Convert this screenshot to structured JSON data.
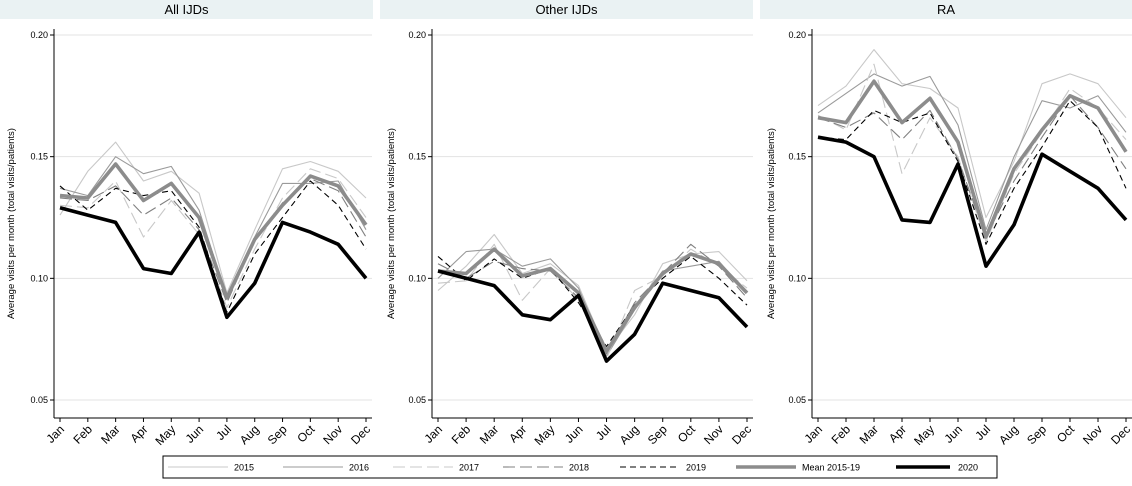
{
  "colors": {
    "background": "#ffffff",
    "panel_title_bg": "#eaf2f3",
    "gridline": "#e3e3e3",
    "axis": "#000000",
    "s2015": "#c8c8c8",
    "s2016": "#9a9a9a",
    "s2017": "#c8c8c8",
    "s2018": "#808080",
    "s2019": "#000000",
    "mean": "#8c8c8c",
    "s2020": "#000000"
  },
  "chart_data": [
    {
      "type": "line",
      "title": "All IJDs",
      "ylabel": "Average visits per month (total visits/patients)",
      "ylim": [
        0.05,
        0.2
      ],
      "yticks": [
        0.05,
        0.1,
        0.15,
        0.2
      ],
      "ytick_labels": [
        "0.05",
        "0.10",
        "0.15",
        "0.20"
      ],
      "categories": [
        "Jan",
        "Feb",
        "Mar",
        "Apr",
        "May",
        "Jun",
        "Jul",
        "Aug",
        "Sep",
        "Oct",
        "Nov",
        "Dec"
      ],
      "grid": true,
      "series": [
        {
          "name": "2015",
          "values": [
            0.126,
            0.144,
            0.156,
            0.14,
            0.144,
            0.135,
            0.094,
            0.12,
            0.145,
            0.148,
            0.144,
            0.133
          ]
        },
        {
          "name": "2016",
          "values": [
            0.137,
            0.134,
            0.15,
            0.143,
            0.146,
            0.128,
            0.092,
            0.117,
            0.139,
            0.139,
            0.14,
            0.12
          ]
        },
        {
          "name": "2017",
          "values": [
            0.13,
            0.129,
            0.14,
            0.117,
            0.132,
            0.118,
            0.088,
            0.112,
            0.133,
            0.145,
            0.141,
            0.125
          ]
        },
        {
          "name": "2018",
          "values": [
            0.133,
            0.132,
            0.138,
            0.126,
            0.133,
            0.12,
            0.09,
            0.116,
            0.131,
            0.141,
            0.136,
            0.117
          ]
        },
        {
          "name": "2019",
          "values": [
            0.138,
            0.128,
            0.137,
            0.134,
            0.136,
            0.121,
            0.086,
            0.11,
            0.125,
            0.14,
            0.13,
            0.112
          ]
        },
        {
          "name": "Mean 2015-19",
          "values": [
            0.134,
            0.133,
            0.147,
            0.132,
            0.139,
            0.125,
            0.092,
            0.116,
            0.13,
            0.142,
            0.138,
            0.122
          ]
        },
        {
          "name": "2020",
          "values": [
            0.129,
            0.126,
            0.123,
            0.104,
            0.102,
            0.119,
            0.084,
            0.098,
            0.123,
            0.119,
            0.114,
            0.1
          ]
        }
      ]
    },
    {
      "type": "line",
      "title": "Other IJDs",
      "ylabel": "Average visits per month (total visits/patients)",
      "ylim": [
        0.05,
        0.2
      ],
      "yticks": [
        0.05,
        0.1,
        0.15,
        0.2
      ],
      "ytick_labels": [
        "0.05",
        "0.10",
        "0.15",
        "0.20"
      ],
      "categories": [
        "Jan",
        "Feb",
        "Mar",
        "Apr",
        "May",
        "Jun",
        "Jul",
        "Aug",
        "Sep",
        "Oct",
        "Nov",
        "Dec"
      ],
      "grid": true,
      "series": [
        {
          "name": "2015",
          "values": [
            0.095,
            0.105,
            0.118,
            0.102,
            0.106,
            0.097,
            0.07,
            0.085,
            0.106,
            0.11,
            0.111,
            0.099
          ]
        },
        {
          "name": "2016",
          "values": [
            0.1,
            0.111,
            0.112,
            0.105,
            0.108,
            0.096,
            0.068,
            0.087,
            0.103,
            0.105,
            0.107,
            0.094
          ]
        },
        {
          "name": "2017",
          "values": [
            0.098,
            0.099,
            0.114,
            0.091,
            0.104,
            0.091,
            0.067,
            0.095,
            0.101,
            0.112,
            0.105,
            0.096
          ]
        },
        {
          "name": "2018",
          "values": [
            0.106,
            0.1,
            0.107,
            0.104,
            0.103,
            0.092,
            0.069,
            0.09,
            0.102,
            0.114,
            0.105,
            0.092
          ]
        },
        {
          "name": "2019",
          "values": [
            0.109,
            0.099,
            0.108,
            0.1,
            0.104,
            0.09,
            0.072,
            0.089,
            0.1,
            0.109,
            0.1,
            0.089
          ]
        },
        {
          "name": "Mean 2015-19",
          "values": [
            0.103,
            0.102,
            0.112,
            0.101,
            0.104,
            0.094,
            0.07,
            0.088,
            0.102,
            0.11,
            0.106,
            0.094
          ]
        },
        {
          "name": "2020",
          "values": [
            0.103,
            0.1,
            0.097,
            0.085,
            0.083,
            0.093,
            0.066,
            0.077,
            0.098,
            0.095,
            0.092,
            0.08
          ]
        }
      ]
    },
    {
      "type": "line",
      "title": "RA",
      "ylabel": "Average visits per month (total visits/patients)",
      "ylim": [
        0.05,
        0.2
      ],
      "yticks": [
        0.05,
        0.1,
        0.15,
        0.2
      ],
      "ytick_labels": [
        "0.05",
        "0.10",
        "0.15",
        "0.20"
      ],
      "categories": [
        "Jan",
        "Feb",
        "Mar",
        "Apr",
        "May",
        "Jun",
        "Jul",
        "Aug",
        "Sep",
        "Oct",
        "Nov",
        "Dec"
      ],
      "grid": true,
      "series": [
        {
          "name": "2015",
          "values": [
            0.171,
            0.179,
            0.194,
            0.18,
            0.178,
            0.17,
            0.125,
            0.148,
            0.18,
            0.184,
            0.18,
            0.166
          ]
        },
        {
          "name": "2016",
          "values": [
            0.168,
            0.176,
            0.184,
            0.179,
            0.183,
            0.163,
            0.12,
            0.15,
            0.173,
            0.17,
            0.175,
            0.16
          ]
        },
        {
          "name": "2017",
          "values": [
            0.167,
            0.161,
            0.188,
            0.143,
            0.166,
            0.15,
            0.115,
            0.143,
            0.16,
            0.178,
            0.17,
            0.157
          ]
        },
        {
          "name": "2018",
          "values": [
            0.166,
            0.162,
            0.168,
            0.157,
            0.169,
            0.149,
            0.117,
            0.14,
            0.158,
            0.175,
            0.162,
            0.145
          ]
        },
        {
          "name": "2019",
          "values": [
            0.158,
            0.157,
            0.169,
            0.164,
            0.168,
            0.148,
            0.114,
            0.137,
            0.154,
            0.173,
            0.162,
            0.137
          ]
        },
        {
          "name": "Mean 2015-19",
          "values": [
            0.166,
            0.164,
            0.181,
            0.164,
            0.174,
            0.156,
            0.117,
            0.145,
            0.161,
            0.175,
            0.17,
            0.152
          ]
        },
        {
          "name": "2020",
          "values": [
            0.158,
            0.156,
            0.15,
            0.124,
            0.123,
            0.147,
            0.105,
            0.122,
            0.151,
            0.144,
            0.137,
            0.124
          ]
        }
      ]
    }
  ],
  "legend": {
    "placement": "bottom",
    "items": [
      {
        "label": "2015",
        "style": "thin-solid-light"
      },
      {
        "label": "2016",
        "style": "thin-solid-medium"
      },
      {
        "label": "2017",
        "style": "long-dash-light"
      },
      {
        "label": "2018",
        "style": "long-dash-medium"
      },
      {
        "label": "2019",
        "style": "short-dash-black"
      },
      {
        "label": "Mean 2015-19",
        "style": "thick-solid-gray"
      },
      {
        "label": "2020",
        "style": "thick-solid-black"
      }
    ]
  }
}
